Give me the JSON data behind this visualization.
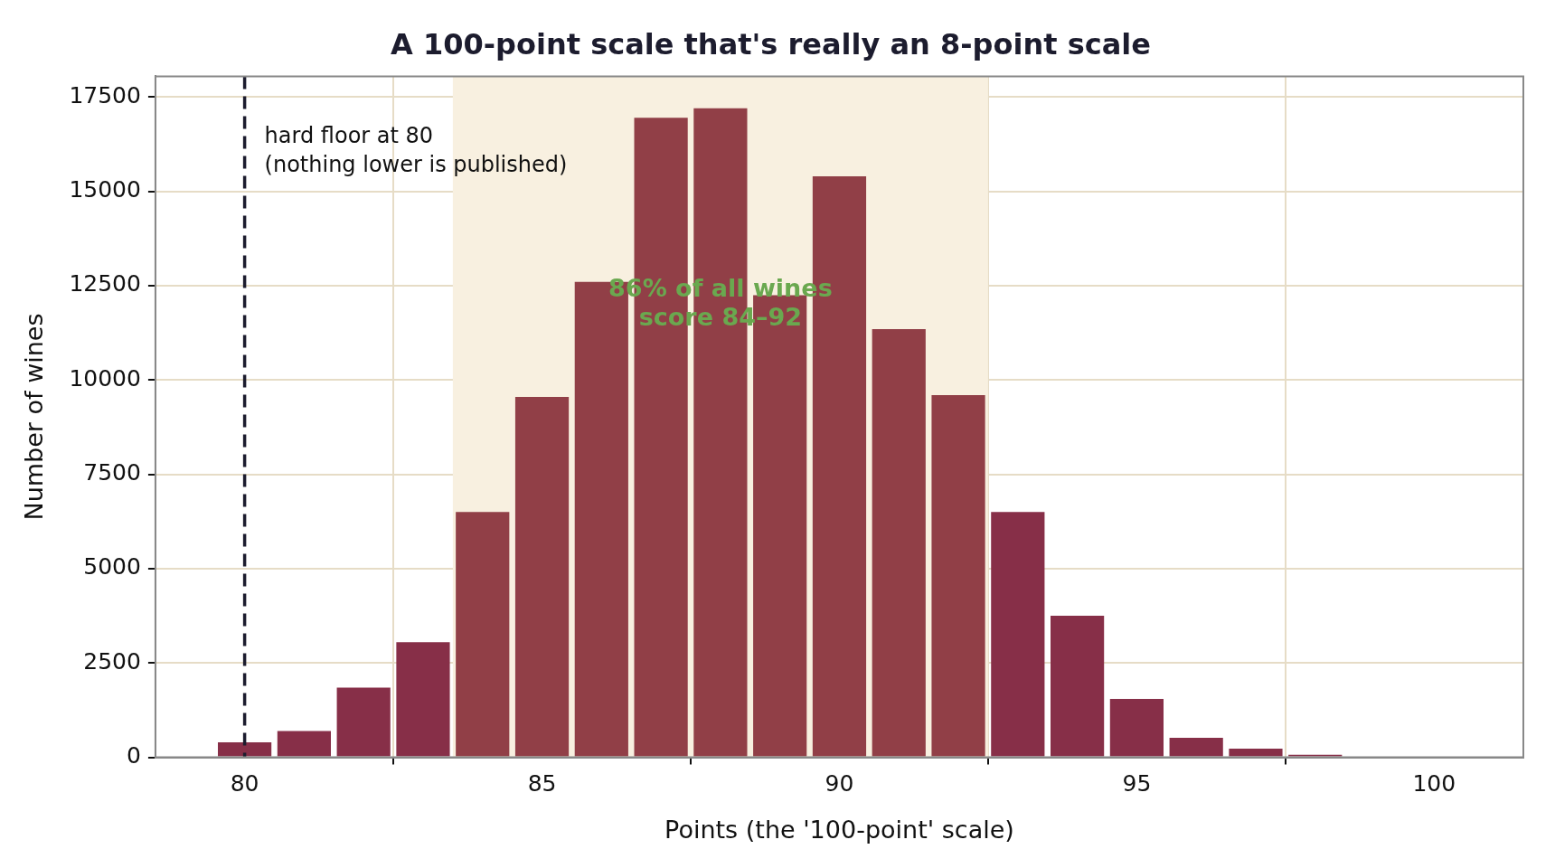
{
  "chart_data": {
    "type": "histogram",
    "title": "A 100-point scale that's really an 8-point scale",
    "xlabel": "Points (the '100-point' scale)",
    "ylabel": "Number of wines",
    "bins": [
      79.5,
      80.5,
      81.5,
      82.5,
      83.5,
      84.5,
      85.5,
      86.5,
      87.5,
      88.5,
      89.5,
      90.5,
      91.5,
      92.5,
      93.5,
      94.5,
      95.5,
      96.5,
      97.5,
      98.5
    ],
    "values": [
      400,
      700,
      1850,
      3050,
      6500,
      9550,
      12600,
      16950,
      17200,
      12250,
      15400,
      11350,
      9600,
      6500,
      3750,
      1550,
      520,
      230,
      70
    ],
    "colors": [
      "#872f48",
      "#872f48",
      "#872f48",
      "#872f48",
      "#913f47",
      "#913f47",
      "#913f47",
      "#913f47",
      "#913f47",
      "#913f47",
      "#913f47",
      "#913f47",
      "#913f47",
      "#872f48",
      "#872f48",
      "#872f48",
      "#872f48",
      "#872f48",
      "#872f48"
    ],
    "xlim": [
      78.5,
      101.5
    ],
    "xticks": [
      80,
      85,
      90,
      95,
      100
    ],
    "ylim": [
      0,
      18050
    ],
    "yticks": [
      0,
      2500,
      5000,
      7500,
      10000,
      12500,
      15000,
      17500
    ],
    "grid": true,
    "legend": false,
    "ref_lines": [
      {
        "axis": "x",
        "value": 80,
        "label": "hard floor at 80\n(nothing lower is published)",
        "color": "#1c1c2e",
        "line_style": "dashed"
      }
    ],
    "bands": [
      {
        "axis": "x",
        "from": 83.5,
        "to": 92.5,
        "label": "86% of all wines\nscore 84–92",
        "color": "#f8f0e0"
      }
    ]
  }
}
